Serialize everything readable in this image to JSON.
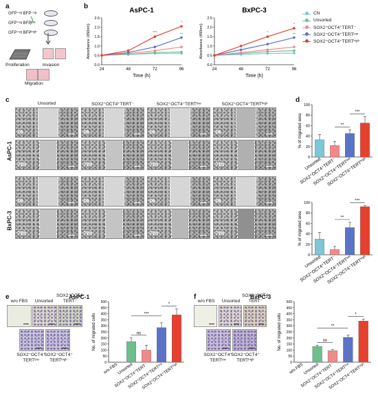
{
  "panels": {
    "a": "a",
    "b": "b",
    "c": "c",
    "d": "d",
    "e": "e",
    "f": "f"
  },
  "panel_a": {
    "rows": [
      "GFP⁺ᵉᵍ BFP⁻ᵉᵍ",
      "GFP⁺ᵉᵍ BFPˡᵒʷ",
      "GFP⁺ᵉᵍ BFPʰⁱᵍʰ"
    ],
    "proliferation": "Proliferation",
    "invasion": "Invasion",
    "migration": "Migration"
  },
  "legend": {
    "items": [
      {
        "label": "CN",
        "color": "#7fc6d6"
      },
      {
        "label": "Unsorted",
        "color": "#6dbf8e"
      },
      {
        "label": "SOX2⁺OCT4⁺TERT⁻",
        "color": "#f08a8a"
      },
      {
        "label": "SOX2⁺OCT4⁺TERTˡᵒʷ",
        "color": "#5b73c6"
      },
      {
        "label": "SOX2⁺OCT4⁺TERTʰⁱᵍʰ",
        "color": "#e8402e"
      }
    ]
  },
  "panel_c": {
    "col_headers": [
      "Unsorted",
      "SOX2⁺OCT4⁺TERT⁻",
      "SOX2⁺OCT4⁺TERTˡᵒʷ",
      "SOX2⁺OCT4⁺TERTʰⁱᵍʰ"
    ],
    "row_groups": [
      "AsPC-1",
      "BxPC-3"
    ],
    "times": [
      "0h",
      "72h"
    ]
  },
  "panel_e": {
    "title": "AsPC-1",
    "wells": [
      "w/o FBS",
      "Unsorted",
      "SOX2⁺OCT4⁻\nTERT⁻",
      "SOX2⁺OCT4⁺\nTERTˡᵒʷ",
      "SOX2⁺OCT4⁺\nTERTʰⁱᵍʰ"
    ]
  },
  "panel_f": {
    "title": "BxPC-3",
    "wells": [
      "w/o FBS",
      "Unsorted",
      "SOX2⁺OCT4⁻\nTERT⁻",
      "SOX2⁺OCT4⁺\nTERTˡᵒʷ",
      "SOX2⁺OCT4⁺\nTERTʰⁱᵍʰ"
    ]
  },
  "chart_data": [
    {
      "id": "b-aspc1",
      "type": "line",
      "title": "AsPC-1",
      "xlabel": "Time (h)",
      "ylabel": "Absorbance (450nm)",
      "x": [
        24,
        48,
        72,
        96
      ],
      "ylim": [
        0,
        2.5
      ],
      "yticks": [
        0.0,
        0.5,
        1.0,
        1.5,
        2.0,
        2.5
      ],
      "series": [
        {
          "name": "CN",
          "color": "#7fc6d6",
          "values": [
            0.5,
            0.55,
            0.6,
            0.6
          ]
        },
        {
          "name": "Unsorted",
          "color": "#6dbf8e",
          "values": [
            0.5,
            0.55,
            0.65,
            0.68
          ]
        },
        {
          "name": "SOX2⁺OCT4⁺TERT⁻",
          "color": "#f08a8a",
          "values": [
            0.5,
            0.6,
            0.75,
            0.95
          ]
        },
        {
          "name": "SOX2⁺OCT4⁺TERTˡᵒʷ",
          "color": "#5b73c6",
          "values": [
            0.5,
            0.65,
            0.95,
            1.45
          ]
        },
        {
          "name": "SOX2⁺OCT4⁺TERTʰⁱᵍʰ",
          "color": "#e8402e",
          "values": [
            0.5,
            0.75,
            1.5,
            2.05
          ]
        }
      ],
      "annotations": [
        {
          "x": 72,
          "text": "***"
        },
        {
          "x": 96,
          "text": "*"
        },
        {
          "x": 96,
          "text": "**"
        }
      ]
    },
    {
      "id": "b-bxpc3",
      "type": "line",
      "title": "BxPC-3",
      "xlabel": "Time (h)",
      "ylabel": "Absorbance (450nm)",
      "x": [
        24,
        48,
        72,
        96
      ],
      "ylim": [
        0,
        2.5
      ],
      "yticks": [
        0.0,
        0.5,
        1.0,
        1.5,
        2.0,
        2.5
      ],
      "series": [
        {
          "name": "CN",
          "color": "#7fc6d6",
          "values": [
            0.5,
            0.55,
            0.6,
            0.62
          ]
        },
        {
          "name": "Unsorted",
          "color": "#6dbf8e",
          "values": [
            0.5,
            0.6,
            0.7,
            0.75
          ]
        },
        {
          "name": "SOX2⁺OCT4⁺TERT⁻",
          "color": "#f08a8a",
          "values": [
            0.5,
            0.65,
            0.8,
            0.95
          ]
        },
        {
          "name": "SOX2⁺OCT4⁺TERTˡᵒʷ",
          "color": "#5b73c6",
          "values": [
            0.5,
            0.8,
            1.1,
            1.45
          ]
        },
        {
          "name": "SOX2⁺OCT4⁺TERTʰⁱᵍʰ",
          "color": "#e8402e",
          "values": [
            0.5,
            1.0,
            1.5,
            1.95
          ]
        }
      ],
      "annotations": [
        {
          "x": 72,
          "text": "*"
        },
        {
          "x": 96,
          "text": "*"
        },
        {
          "x": 96,
          "text": "**"
        }
      ]
    },
    {
      "id": "d-aspc1",
      "type": "bar",
      "ylabel": "% of migrated area",
      "ylim": [
        0,
        100
      ],
      "yticks": [
        0,
        20,
        40,
        60,
        80,
        100
      ],
      "categories": [
        "Unsorted",
        "SOX2⁺OCT4⁺TERT⁻",
        "SOX2⁺OCT4⁺TERTˡᵒʷ",
        "SOX2⁺OCT4⁺TERTʰⁱᵍʰ"
      ],
      "values": [
        33,
        22,
        45,
        65
      ],
      "errors": [
        10,
        8,
        7,
        12
      ],
      "colors": [
        "#7fc6d6",
        "#f08a8a",
        "#5b73c6",
        "#e8402e"
      ],
      "brackets": [
        {
          "from": 1,
          "to": 2,
          "text": "**"
        },
        {
          "from": 2,
          "to": 3,
          "text": "***"
        }
      ]
    },
    {
      "id": "d-bxpc3",
      "type": "bar",
      "ylabel": "% of migrated area",
      "ylim": [
        0,
        100
      ],
      "yticks": [
        0,
        20,
        40,
        60,
        80,
        100
      ],
      "categories": [
        "Unsorted",
        "SOX2⁺OCT4⁺TERT⁻",
        "SOX2⁺OCT4⁺TERTˡᵒʷ",
        "SOX2⁺OCT4⁺TERTʰⁱᵍʰ"
      ],
      "values": [
        30,
        10,
        52,
        92
      ],
      "errors": [
        13,
        6,
        10,
        2
      ],
      "colors": [
        "#7fc6d6",
        "#f08a8a",
        "#5b73c6",
        "#e8402e"
      ],
      "brackets": [
        {
          "from": 1,
          "to": 2,
          "text": "**"
        },
        {
          "from": 2,
          "to": 3,
          "text": "***"
        }
      ]
    },
    {
      "id": "e-aspc1",
      "type": "bar",
      "ylabel": "No. of migrated cells",
      "ylim": [
        0,
        500
      ],
      "yticks": [
        0,
        50,
        100,
        150,
        200,
        250,
        300,
        350,
        400,
        450,
        500
      ],
      "categories": [
        "w/o FBS",
        "Unsorted",
        "SOX2⁺OCT4⁺TERT⁻",
        "SOX2⁺OCT4⁺TERTˡᵒʷ",
        "SOX2⁺OCT4⁺TERTʰⁱᵍʰ"
      ],
      "values": [
        0,
        170,
        100,
        285,
        390
      ],
      "errors": [
        0,
        30,
        40,
        40,
        50
      ],
      "colors": [
        "#cccccc",
        "#6dbf8e",
        "#f08a8a",
        "#5b73c6",
        "#e8402e"
      ],
      "brackets": [
        {
          "from": 1,
          "to": 2,
          "text": "ns"
        },
        {
          "from": 1,
          "to": 3,
          "text": "***"
        },
        {
          "from": 3,
          "to": 4,
          "text": "*"
        }
      ]
    },
    {
      "id": "f-bxpc3",
      "type": "bar",
      "ylabel": "No. of migrated cells",
      "ylim": [
        0,
        500
      ],
      "yticks": [
        0,
        50,
        100,
        150,
        200,
        250,
        300,
        350,
        400,
        450,
        500
      ],
      "categories": [
        "w/o FBS",
        "Unsorted",
        "SOX2⁺OCT4⁺TERT⁻",
        "SOX2⁺OCT4⁺TERTˡᵒʷ",
        "SOX2⁺OCT4⁺TERTʰⁱᵍʰ"
      ],
      "values": [
        0,
        130,
        95,
        205,
        340
      ],
      "errors": [
        0,
        10,
        10,
        20,
        15
      ],
      "colors": [
        "#cccccc",
        "#6dbf8e",
        "#f08a8a",
        "#5b73c6",
        "#e8402e"
      ],
      "brackets": [
        {
          "from": 1,
          "to": 2,
          "text": "ns"
        },
        {
          "from": 1,
          "to": 3,
          "text": "**"
        },
        {
          "from": 3,
          "to": 4,
          "text": "*"
        }
      ]
    }
  ]
}
